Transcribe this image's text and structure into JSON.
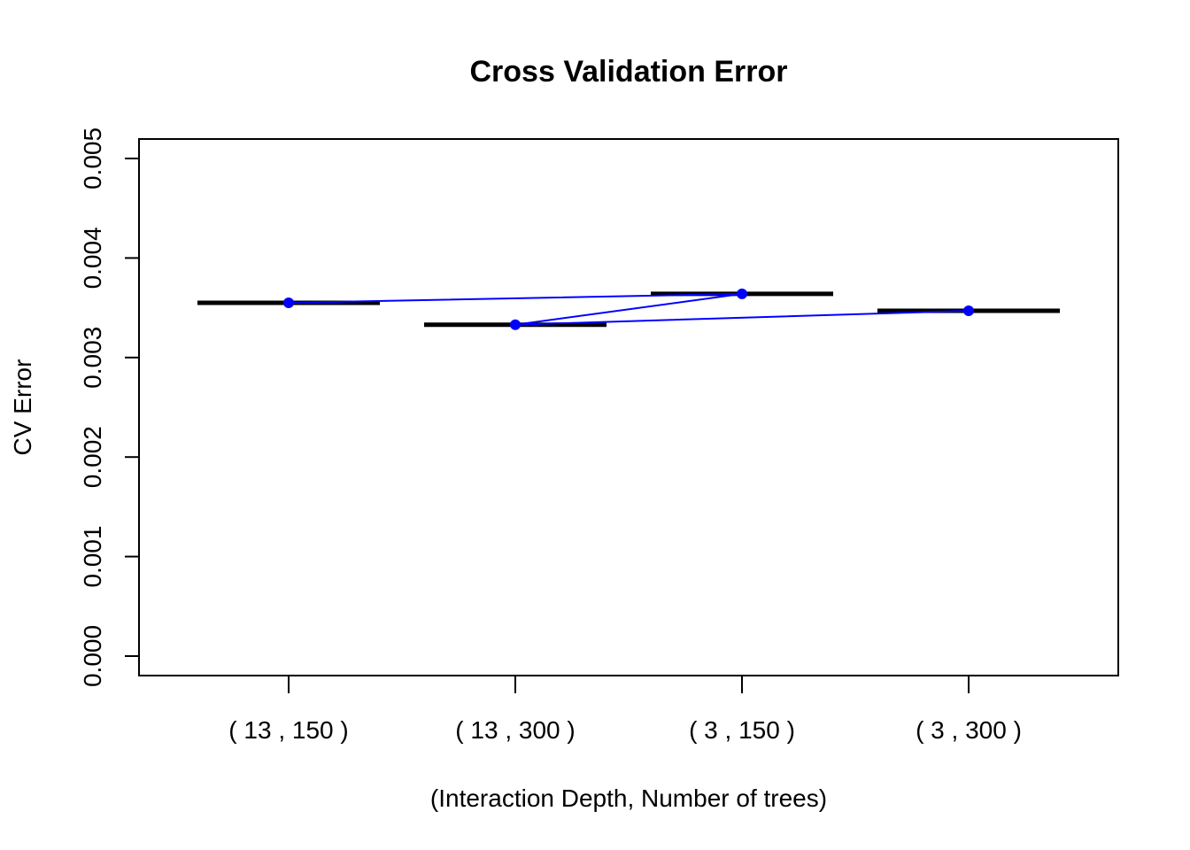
{
  "chart_data": {
    "type": "line",
    "title": "Cross Validation Error",
    "xlabel": "(Interaction Depth, Number of trees)",
    "ylabel": "CV Error",
    "categories": [
      "( 13 , 150 )",
      "( 13 , 300 )",
      "( 3 , 150 )",
      "( 3 , 300 )"
    ],
    "values": [
      0.00355,
      0.00333,
      0.00364,
      0.00347
    ],
    "ylim": [
      0.0,
      0.005
    ],
    "yticks": [
      "0.000",
      "0.001",
      "0.002",
      "0.003",
      "0.004",
      "0.005"
    ],
    "ytick_values": [
      0.0,
      0.001,
      0.002,
      0.003,
      0.004,
      0.005
    ],
    "line_order": [
      0,
      2,
      1,
      3
    ],
    "grid": false,
    "colors": {
      "points": "#0000ff",
      "line": "#0000ff",
      "bars": "#000000"
    }
  }
}
